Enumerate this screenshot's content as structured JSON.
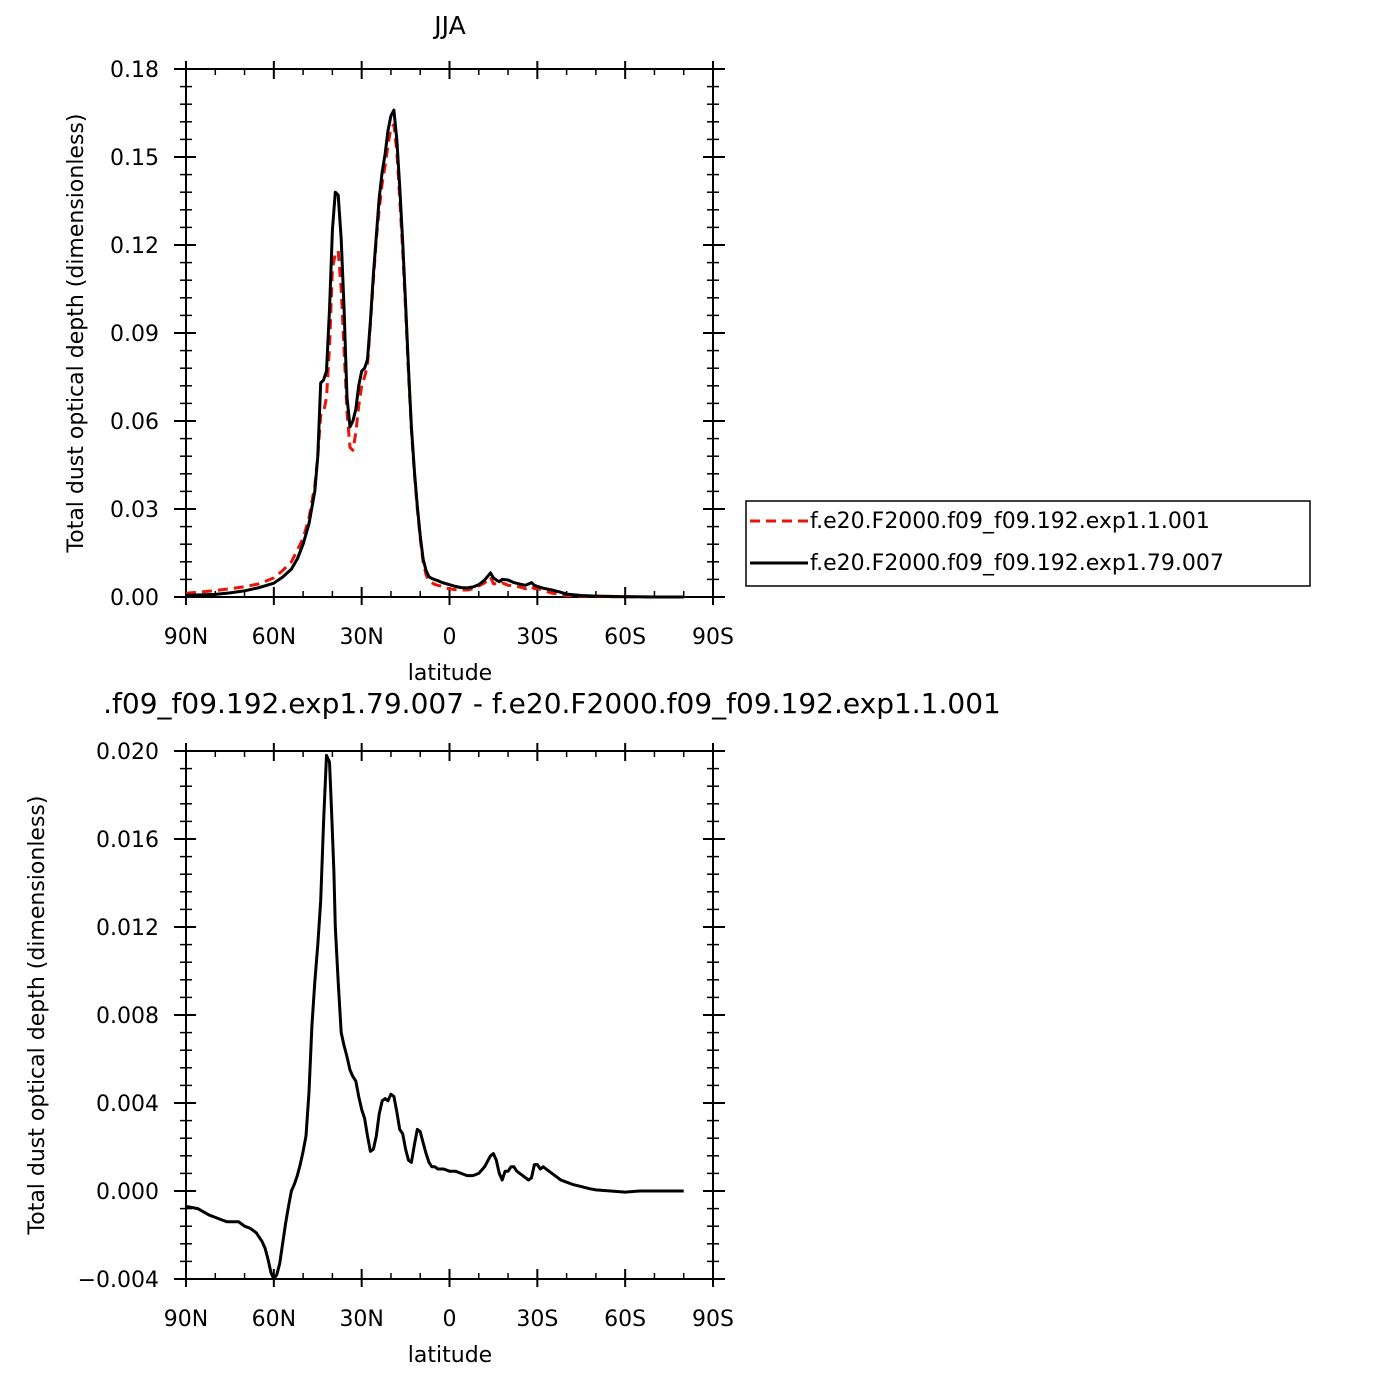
{
  "chart_data": [
    {
      "type": "line",
      "title": "JJA",
      "xlabel": "latitude",
      "ylabel": "Total dust optical depth (dimensionless)",
      "xlim": [
        90,
        -90
      ],
      "ylim": [
        0,
        0.18
      ],
      "x_ticks": [
        90,
        60,
        30,
        0,
        -30,
        -60,
        -90
      ],
      "x_tick_labels": [
        "90N",
        "60N",
        "30N",
        "0",
        "30S",
        "60S",
        "90S"
      ],
      "y_ticks": [
        0,
        0.03,
        0.06,
        0.09,
        0.12,
        0.15,
        0.18
      ],
      "y_tick_labels": [
        "0.00",
        "0.03",
        "0.06",
        "0.09",
        "0.12",
        "0.15",
        "0.18"
      ],
      "legend_position": "right",
      "series": [
        {
          "name": "f.e20.F2000.f09_f09.192.exp1.1.001",
          "color": "#e8150b",
          "dash": "dashed",
          "x": [
            90,
            85,
            80,
            75,
            70,
            65,
            60,
            57,
            54,
            52,
            50,
            48,
            46,
            45,
            44,
            43,
            42,
            41,
            40,
            39,
            38,
            37,
            36,
            35,
            34,
            33,
            32,
            31,
            30,
            29,
            28,
            27,
            26,
            25,
            24,
            23,
            22,
            21,
            20,
            19,
            18,
            17,
            16,
            15,
            14,
            13,
            12,
            11,
            10,
            9,
            8,
            7,
            6,
            5,
            4,
            3,
            2,
            1,
            0,
            -2,
            -4,
            -6,
            -8,
            -10,
            -12,
            -14,
            -15,
            -16,
            -17,
            -18,
            -20,
            -22,
            -24,
            -26,
            -28,
            -29,
            -30,
            -32,
            -35,
            -38,
            -40,
            -45,
            -50,
            -55,
            -60,
            -70,
            -80
          ],
          "y": [
            0.0013,
            0.0017,
            0.0022,
            0.0028,
            0.0035,
            0.0045,
            0.0065,
            0.009,
            0.012,
            0.016,
            0.02,
            0.027,
            0.038,
            0.048,
            0.062,
            0.063,
            0.068,
            0.085,
            0.112,
            0.117,
            0.118,
            0.105,
            0.084,
            0.063,
            0.051,
            0.05,
            0.056,
            0.065,
            0.072,
            0.075,
            0.079,
            0.093,
            0.108,
            0.122,
            0.132,
            0.141,
            0.147,
            0.154,
            0.16,
            0.161,
            0.152,
            0.136,
            0.118,
            0.098,
            0.076,
            0.057,
            0.042,
            0.03,
            0.02,
            0.012,
            0.0075,
            0.0055,
            0.0048,
            0.0043,
            0.004,
            0.0037,
            0.0034,
            0.003,
            0.0028,
            0.0025,
            0.0024,
            0.0024,
            0.0028,
            0.0038,
            0.0048,
            0.0068,
            0.0045,
            0.0045,
            0.0042,
            0.0048,
            0.004,
            0.0038,
            0.0034,
            0.0028,
            0.0036,
            0.0028,
            0.003,
            0.0022,
            0.0013,
            0.0008,
            0.0005,
            0.0003,
            0.0002,
            0.0001,
            0.0001,
            0.0,
            0.0
          ]
        },
        {
          "name": "f.e20.F2000.f09_f09.192.exp1.79.007",
          "color": "#000000",
          "dash": "solid",
          "x": [
            90,
            85,
            80,
            75,
            70,
            65,
            60,
            57,
            54,
            52,
            50,
            48,
            46,
            45,
            44,
            43,
            42,
            41,
            40,
            39,
            38,
            37,
            36,
            35,
            34,
            33,
            32,
            31,
            30,
            29,
            28,
            27,
            26,
            25,
            24,
            23,
            22,
            21,
            20,
            19,
            18,
            17,
            16,
            15,
            14,
            13,
            12,
            11,
            10,
            9,
            8,
            7,
            6,
            5,
            4,
            3,
            2,
            1,
            0,
            -2,
            -4,
            -6,
            -8,
            -10,
            -12,
            -14,
            -15,
            -16,
            -17,
            -18,
            -20,
            -22,
            -24,
            -26,
            -28,
            -29,
            -30,
            -32,
            -35,
            -38,
            -40,
            -45,
            -50,
            -55,
            -60,
            -70,
            -80
          ],
          "y": [
            0.0006,
            0.0007,
            0.0009,
            0.0014,
            0.0021,
            0.0032,
            0.0047,
            0.0068,
            0.0095,
            0.013,
            0.018,
            0.025,
            0.036,
            0.048,
            0.073,
            0.074,
            0.077,
            0.098,
            0.125,
            0.138,
            0.137,
            0.122,
            0.098,
            0.068,
            0.058,
            0.06,
            0.064,
            0.072,
            0.077,
            0.078,
            0.081,
            0.094,
            0.11,
            0.123,
            0.136,
            0.145,
            0.151,
            0.159,
            0.164,
            0.166,
            0.156,
            0.14,
            0.121,
            0.1,
            0.078,
            0.058,
            0.043,
            0.031,
            0.021,
            0.013,
            0.009,
            0.0069,
            0.0063,
            0.0059,
            0.0056,
            0.0051,
            0.0048,
            0.0045,
            0.0042,
            0.0036,
            0.0032,
            0.0031,
            0.0034,
            0.0042,
            0.0058,
            0.0082,
            0.0065,
            0.0058,
            0.0052,
            0.006,
            0.0058,
            0.0049,
            0.0044,
            0.004,
            0.0049,
            0.004,
            0.0036,
            0.003,
            0.0024,
            0.0016,
            0.001,
            0.0005,
            0.0003,
            0.0002,
            0.0001,
            0.0,
            0.0
          ]
        }
      ]
    },
    {
      "type": "line",
      "title": ".f09_f09.192.exp1.79.007 - f.e20.F2000.f09_f09.192.exp1.1.001",
      "xlabel": "latitude",
      "ylabel": "Total dust optical depth (dimensionless)",
      "xlim": [
        90,
        -90
      ],
      "ylim": [
        -0.004,
        0.02
      ],
      "x_ticks": [
        90,
        60,
        30,
        0,
        -30,
        -60,
        -90
      ],
      "x_tick_labels": [
        "90N",
        "60N",
        "30N",
        "0",
        "30S",
        "60S",
        "90S"
      ],
      "y_ticks": [
        -0.004,
        0.0,
        0.004,
        0.008,
        0.012,
        0.016,
        0.02
      ],
      "y_tick_labels": [
        "−0.004",
        "0.000",
        "0.004",
        "0.008",
        "0.012",
        "0.016",
        "0.020"
      ],
      "series": [
        {
          "color": "#000000",
          "dash": "solid",
          "x": [
            90,
            86,
            82,
            80,
            78,
            76,
            74,
            72,
            71,
            70,
            68,
            66,
            64,
            63,
            62,
            61,
            60,
            59,
            58,
            57,
            56,
            55,
            54,
            53,
            52,
            51,
            50,
            49,
            48,
            47,
            46,
            45,
            44,
            43,
            42,
            41,
            40.5,
            40,
            39.5,
            39,
            38,
            37,
            36,
            35,
            34,
            33,
            32,
            31,
            30,
            29,
            28,
            27,
            26,
            25,
            24,
            23,
            22,
            21,
            20,
            19,
            18,
            17,
            16,
            15,
            14,
            13,
            12,
            11,
            10,
            9,
            8,
            7,
            6,
            5,
            4,
            2,
            0,
            -2,
            -4,
            -6,
            -8,
            -10,
            -12,
            -14,
            -15,
            -16,
            -17,
            -18,
            -19,
            -20,
            -21,
            -22,
            -23,
            -24,
            -25,
            -26,
            -27,
            -28,
            -29,
            -30,
            -31,
            -32,
            -34,
            -36,
            -38,
            -40,
            -42,
            -45,
            -48,
            -50,
            -55,
            -60,
            -65,
            -70,
            -75,
            -80
          ],
          "y": [
            -0.0007,
            -0.0008,
            -0.0011,
            -0.0012,
            -0.0013,
            -0.0014,
            -0.0014,
            -0.0014,
            -0.0015,
            -0.0016,
            -0.0017,
            -0.0019,
            -0.0023,
            -0.0026,
            -0.0031,
            -0.0037,
            -0.004,
            -0.0038,
            -0.0033,
            -0.0024,
            -0.0015,
            -0.0007,
            0.0,
            0.0003,
            0.0007,
            0.0012,
            0.0018,
            0.0025,
            0.0045,
            0.0075,
            0.0095,
            0.0112,
            0.0132,
            0.0168,
            0.0198,
            0.0195,
            0.018,
            0.0163,
            0.0145,
            0.012,
            0.0095,
            0.0072,
            0.0066,
            0.0061,
            0.0055,
            0.0052,
            0.005,
            0.0043,
            0.0037,
            0.0033,
            0.0025,
            0.0018,
            0.0019,
            0.0025,
            0.0035,
            0.0041,
            0.0042,
            0.0041,
            0.0044,
            0.0043,
            0.0036,
            0.0028,
            0.0026,
            0.0019,
            0.0014,
            0.0013,
            0.0021,
            0.0028,
            0.0027,
            0.0022,
            0.0017,
            0.0013,
            0.0011,
            0.0011,
            0.001,
            0.001,
            0.0009,
            0.0009,
            0.0008,
            0.0007,
            0.0007,
            0.0008,
            0.0011,
            0.0016,
            0.0017,
            0.0014,
            0.0008,
            0.0005,
            0.0009,
            0.0009,
            0.0011,
            0.0011,
            0.0009,
            0.0008,
            0.0007,
            0.0006,
            0.0005,
            0.0006,
            0.0012,
            0.0012,
            0.001,
            0.0011,
            0.0009,
            0.0007,
            0.0005,
            0.0004,
            0.0003,
            0.0002,
            0.0001,
            5e-05,
            0.0,
            -5e-05,
            0.0,
            0.0,
            0.0,
            0.0
          ]
        }
      ]
    }
  ]
}
